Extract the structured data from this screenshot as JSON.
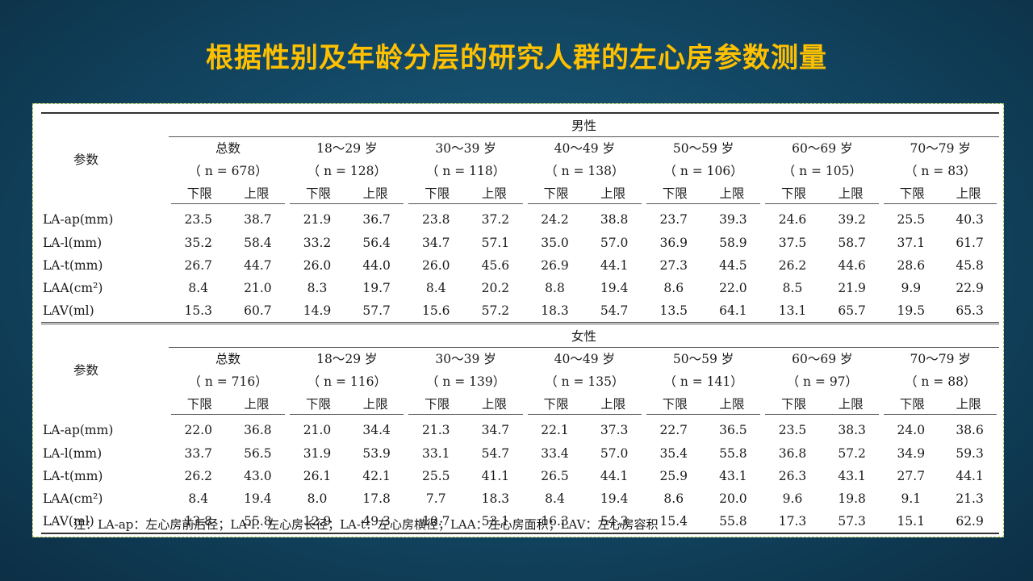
{
  "title": "根据性别及年龄分层的研究人群的左心房参数测量",
  "param_header": "参数",
  "lower_label": "下限",
  "upper_label": "上限",
  "sections": [
    {
      "name": "男性",
      "groups": [
        {
          "label": "总数",
          "n": "（ n = 678）"
        },
        {
          "label": "18～29 岁",
          "n": "（ n = 128）"
        },
        {
          "label": "30～39 岁",
          "n": "（ n = 118）"
        },
        {
          "label": "40～49 岁",
          "n": "（ n = 138）"
        },
        {
          "label": "50～59 岁",
          "n": "（ n = 106）"
        },
        {
          "label": "60～69 岁",
          "n": "（ n = 105）"
        },
        {
          "label": "70～79 岁",
          "n": "（ n = 83）"
        }
      ],
      "rows": [
        {
          "param": "LA-ap(mm)",
          "values": [
            "23.5",
            "38.7",
            "21.9",
            "36.7",
            "23.8",
            "37.2",
            "24.2",
            "38.8",
            "23.7",
            "39.3",
            "24.6",
            "39.2",
            "25.5",
            "40.3"
          ]
        },
        {
          "param": "LA-l(mm)",
          "values": [
            "35.2",
            "58.4",
            "33.2",
            "56.4",
            "34.7",
            "57.1",
            "35.0",
            "57.0",
            "36.9",
            "58.9",
            "37.5",
            "58.7",
            "37.1",
            "61.7"
          ]
        },
        {
          "param": "LA-t(mm)",
          "values": [
            "26.7",
            "44.7",
            "26.0",
            "44.0",
            "26.0",
            "45.6",
            "26.9",
            "44.1",
            "27.3",
            "44.5",
            "26.2",
            "44.6",
            "28.6",
            "45.8"
          ]
        },
        {
          "param": "LAA(cm²)",
          "values": [
            "8.4",
            "21.0",
            "8.3",
            "19.7",
            "8.4",
            "20.2",
            "8.8",
            "19.4",
            "8.6",
            "22.0",
            "8.5",
            "21.9",
            "9.9",
            "22.9"
          ]
        },
        {
          "param": "LAV(ml)",
          "values": [
            "15.3",
            "60.7",
            "14.9",
            "57.7",
            "15.6",
            "57.2",
            "18.3",
            "54.7",
            "13.5",
            "64.1",
            "13.1",
            "65.7",
            "19.5",
            "65.3"
          ]
        }
      ]
    },
    {
      "name": "女性",
      "groups": [
        {
          "label": "总数",
          "n": "（ n = 716）"
        },
        {
          "label": "18～29 岁",
          "n": "（ n = 116）"
        },
        {
          "label": "30～39 岁",
          "n": "（ n = 139）"
        },
        {
          "label": "40～49 岁",
          "n": "（ n = 135）"
        },
        {
          "label": "50～59 岁",
          "n": "（ n = 141）"
        },
        {
          "label": "60～69 岁",
          "n": "（ n = 97）"
        },
        {
          "label": "70～79 岁",
          "n": "（ n = 88）"
        }
      ],
      "rows": [
        {
          "param": "LA-ap(mm)",
          "values": [
            "22.0",
            "36.8",
            "21.0",
            "34.4",
            "21.3",
            "34.7",
            "22.1",
            "37.3",
            "22.7",
            "36.5",
            "23.5",
            "38.3",
            "24.0",
            "38.6"
          ]
        },
        {
          "param": "LA-l(mm)",
          "values": [
            "33.7",
            "56.5",
            "31.9",
            "53.9",
            "33.1",
            "54.7",
            "33.4",
            "57.0",
            "35.4",
            "55.8",
            "36.8",
            "57.2",
            "34.9",
            "59.3"
          ]
        },
        {
          "param": "LA-t(mm)",
          "values": [
            "26.2",
            "43.0",
            "26.1",
            "42.1",
            "25.5",
            "41.1",
            "26.5",
            "44.1",
            "25.9",
            "43.1",
            "26.3",
            "43.1",
            "27.7",
            "44.1"
          ]
        },
        {
          "param": "LAA(cm²)",
          "values": [
            "8.4",
            "19.4",
            "8.0",
            "17.8",
            "7.7",
            "18.3",
            "8.4",
            "19.4",
            "8.6",
            "20.0",
            "9.6",
            "19.8",
            "9.1",
            "21.3"
          ]
        },
        {
          "param": "LAV(ml)",
          "values": [
            "13.8",
            "55.8",
            "12.9",
            "49.3",
            "10.7",
            "53.1",
            "16.3",
            "54.3",
            "15.4",
            "55.8",
            "17.3",
            "57.3",
            "15.1",
            "62.9"
          ]
        }
      ]
    }
  ],
  "footnote": "注：LA-ap：左心房前后径；LA-l：左心房长径；LA-t：左心房横径；LAA：左心房面积；LAV：左心房容积"
}
